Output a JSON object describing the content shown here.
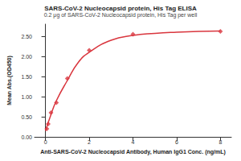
{
  "chart_data": {
    "type": "scatter",
    "title": "SARS-CoV-2 Nucleocapsid protein, His Tag ELISA",
    "subtitle": "0.2 μg of SARS-CoV-2 Nucleocapsid protein, His Tag per well",
    "x_label": "Anti-SARS-CoV-2 Nucleocapsid Antibody, Human IgG1 Conc. (ng/mL)",
    "y_label": "Mean Abs.(OD450)",
    "xlim": [
      -0.5,
      8.5
    ],
    "xticks": [
      0,
      2,
      4,
      6,
      8
    ],
    "ylim": [
      0,
      2.8
    ],
    "yticks": [
      {
        "value": 0,
        "label": "0.00"
      },
      {
        "value": 0.5,
        "label": "0.50"
      },
      {
        "value": 1,
        "label": "1.00"
      },
      {
        "value": 1.5,
        "label": "1.50"
      },
      {
        "value": 2,
        "label": "2.00"
      },
      {
        "value": 2.5,
        "label": "2.50"
      }
    ],
    "grid": false,
    "series": [
      {
        "type": "line",
        "line_style": "solid",
        "color": "#d9363e",
        "x": [
          0,
          0.25,
          0.5,
          1,
          1.5,
          2,
          3,
          4,
          5,
          6,
          7,
          8
        ],
        "values": [
          0.15,
          0.55,
          0.9,
          1.4,
          1.85,
          2.1,
          2.4,
          2.52,
          2.57,
          2.6,
          2.62,
          2.63
        ]
      },
      {
        "type": "scatter",
        "marker": "diamond",
        "color": "#d9363e",
        "x": [
          0.0625,
          0.125,
          0.25,
          0.5,
          1,
          2,
          4,
          8
        ],
        "values": [
          0.2,
          0.32,
          0.6,
          0.85,
          1.45,
          2.15,
          2.55,
          2.62
        ]
      }
    ]
  }
}
